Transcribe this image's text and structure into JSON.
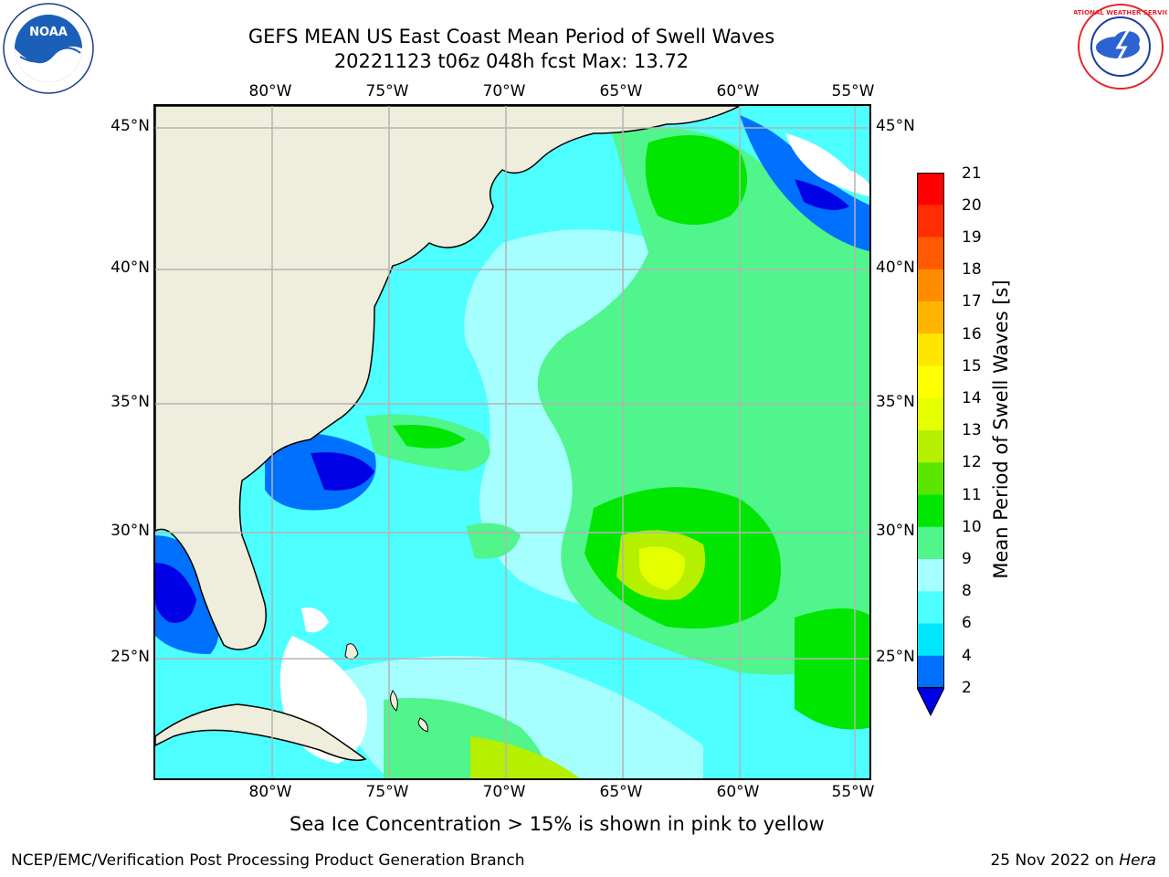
{
  "title": {
    "line1": "GEFS MEAN US East Coast Mean Period of Swell Waves",
    "line2": "20221123 t06z 048h fcst   Max: 13.72"
  },
  "map": {
    "longitude_labels": [
      "80°W",
      "75°W",
      "70°W",
      "65°W",
      "60°W",
      "55°W"
    ],
    "latitude_labels": [
      "45°N",
      "40°N",
      "35°N",
      "30°N",
      "25°N"
    ],
    "colors": {
      "land": "#efeedc",
      "grid": "#b4b4b4",
      "coastline": "#000000"
    }
  },
  "colorbar": {
    "title": "Mean Period of Swell Waves [s]",
    "tick_labels": [
      "2",
      "4",
      "6",
      "8",
      "9",
      "10",
      "11",
      "12",
      "13",
      "14",
      "15",
      "16",
      "17",
      "18",
      "19",
      "20",
      "21"
    ],
    "colors": [
      "#0000e6",
      "#0070ff",
      "#00e6ff",
      "#4dffff",
      "#a5ffff",
      "#50f58c",
      "#00e600",
      "#5ae600",
      "#b4f000",
      "#e6ff00",
      "#ffff00",
      "#ffe600",
      "#ffb400",
      "#ff8c00",
      "#ff5a00",
      "#ff2d00",
      "#ff0000"
    ]
  },
  "logos": {
    "noaa": "NOAA",
    "nws": "NATIONAL WEATHER SERVICE"
  },
  "chart_data": {
    "type": "heatmap",
    "variable": "Mean Period of Swell Waves",
    "units": "s",
    "max_value": 13.72,
    "levels": [
      2,
      4,
      6,
      8,
      9,
      10,
      11,
      12,
      13,
      14,
      15,
      16,
      17,
      18,
      19,
      20,
      21
    ],
    "longitude_ticks": [
      "80°W",
      "75°W",
      "70°W",
      "65°W",
      "60°W",
      "55°W"
    ],
    "latitude_ticks": [
      "45°N",
      "40°N",
      "35°N",
      "30°N",
      "25°N"
    ]
  },
  "notes": {
    "sea_ice": "Sea Ice Concentration > 15% is shown in pink to yellow"
  },
  "footer": {
    "left": "NCEP/EMC/Verification Post Processing Product Generation Branch",
    "right_date": "25 Nov 2022 on ",
    "right_host": "Hera"
  }
}
